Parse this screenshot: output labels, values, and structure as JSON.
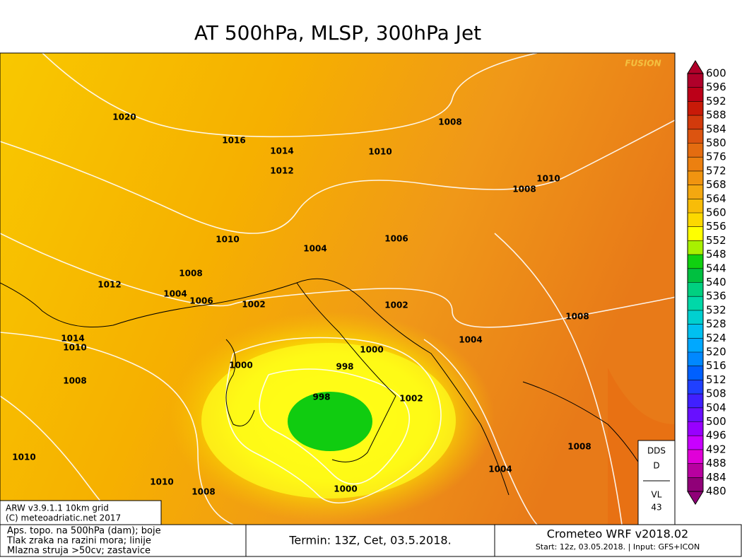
{
  "header": {
    "title": "AT 500hPa, MLSP, 300hPa Jet"
  },
  "map": {
    "watermark": "FUSION",
    "isobar_labels": [
      "1020",
      "1016",
      "1014",
      "1012",
      "1010",
      "1008",
      "1010",
      "1008",
      "1010",
      "1004",
      "1006",
      "1008",
      "1012",
      "1004",
      "1006",
      "1002",
      "1002",
      "1014",
      "1010",
      "1004",
      "1000",
      "998",
      "1000",
      "1008",
      "998",
      "1002",
      "1008",
      "1008",
      "1004",
      "1010",
      "1010",
      "1008",
      "1000"
    ],
    "credits": [
      "ARW v3.9.1.1 10km grid",
      "(C) meteoadriatic.net 2017"
    ],
    "corner_box": [
      "DDS",
      "D",
      "VL",
      "43"
    ]
  },
  "colorbar": {
    "levels": [
      "600",
      "596",
      "592",
      "588",
      "584",
      "580",
      "576",
      "572",
      "568",
      "564",
      "560",
      "556",
      "552",
      "548",
      "544",
      "540",
      "536",
      "532",
      "528",
      "524",
      "520",
      "516",
      "512",
      "508",
      "504",
      "500",
      "496",
      "492",
      "488",
      "484",
      "480"
    ],
    "colors": [
      "#b0002a",
      "#bc0018",
      "#c81a08",
      "#d23a0c",
      "#dc5410",
      "#e46c10",
      "#ec8010",
      "#f09410",
      "#f4a810",
      "#f8bc08",
      "#fcd800",
      "#ffff00",
      "#a8f000",
      "#10d010",
      "#00c040",
      "#00d080",
      "#00d8a8",
      "#00d0d0",
      "#00c0f0",
      "#00a8ff",
      "#0088ff",
      "#0060ff",
      "#2040ff",
      "#4020ff",
      "#6810ff",
      "#9800ff",
      "#c800ff",
      "#e000d8",
      "#b800a0",
      "#900078"
    ]
  },
  "footer": {
    "legend_lines": [
      "Aps. topo. na 500hPa (dam); boje",
      "Tlak zraka na razini mora; linije",
      "Mlazna struja >50cv; zastavice"
    ],
    "term": "Termin: 13Z, Cet, 03.5.2018.",
    "model": "Crometeo WRF v2018.02",
    "start": "Start: 12z, 03.05.2018. | Input: GFS+ICON"
  }
}
